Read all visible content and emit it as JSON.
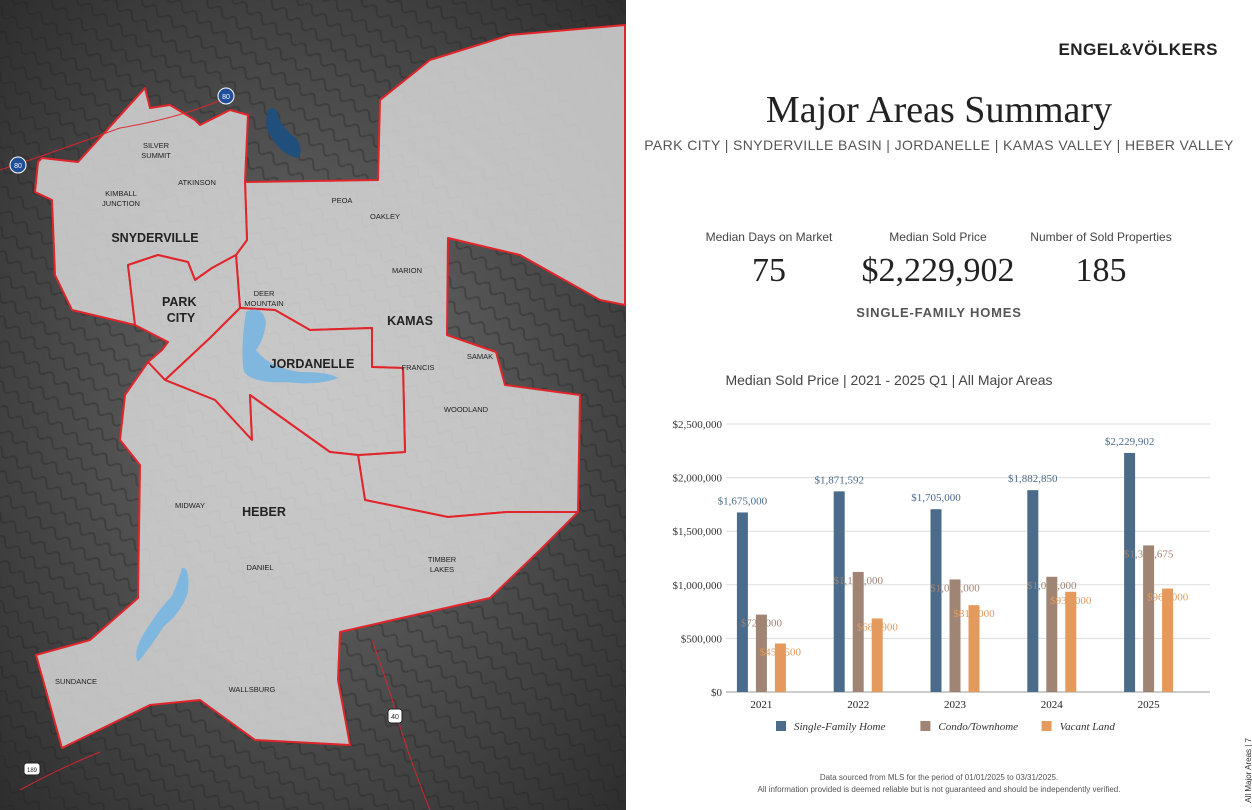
{
  "brand": {
    "logo": "ENGEL&VÖLKERS"
  },
  "header": {
    "title": "Major Areas Summary",
    "subtitle": "PARK CITY  |  SNYDERVILLE BASIN  |  JORDANELLE  |  KAMAS VALLEY  |  HEBER VALLEY"
  },
  "stats": [
    {
      "label": "Median Days on Market",
      "value": "75"
    },
    {
      "label": "Median Sold Price",
      "value": "$2,229,902"
    },
    {
      "label": "Number of Sold Properties",
      "value": "185"
    }
  ],
  "stats_caption": "SINGLE-FAMILY HOMES",
  "map": {
    "highways": [
      "80",
      "80",
      "40",
      "189"
    ],
    "areas": [
      "SNYDERVILLE",
      "PARK CITY",
      "JORDANELLE",
      "KAMAS",
      "HEBER"
    ],
    "places": [
      "SILVER SUMMIT",
      "ATKINSON",
      "KIMBALL JUNCTION",
      "PEOA",
      "OAKLEY",
      "MARION",
      "DEER MOUNTAIN",
      "SAMAK",
      "FRANCIS",
      "WOODLAND",
      "MIDWAY",
      "DANIEL",
      "TIMBER LAKES",
      "SUNDANCE",
      "WALLSBURG"
    ]
  },
  "chart_title": "Median Sold Price  |  2021 - 2025 Q1  |  All Major Areas",
  "chart_data": {
    "type": "bar",
    "title": "Median Sold Price  |  2021 - 2025 Q1  |  All Major Areas",
    "categories": [
      "2021",
      "2022",
      "2023",
      "2024",
      "2025"
    ],
    "ylim": [
      0,
      2500000
    ],
    "yticks": [
      "$0",
      "$500,000",
      "$1,000,000",
      "$1,500,000",
      "$2,000,000",
      "$2,500,000"
    ],
    "grid": true,
    "legend": "bottom",
    "series": [
      {
        "name": "Single-Family Home",
        "color": "#4a6b8a",
        "values": [
          1675000,
          1871592,
          1705000,
          1882850,
          2229902
        ],
        "labels": [
          "$1,675,000",
          "$1,871,592",
          "$1,705,000",
          "$1,882,850",
          "$2,229,902"
        ]
      },
      {
        "name": "Condo/Townhome",
        "color": "#a08574",
        "values": [
          722000,
          1120000,
          1050000,
          1075000,
          1367675
        ],
        "labels": [
          "$722,000",
          "$1,120,000",
          "$1,050,000",
          "$1,075,000",
          "$1,367,675"
        ]
      },
      {
        "name": "Vacant Land",
        "color": "#e39a5c",
        "values": [
          452500,
          685900,
          810000,
          935000,
          965000
        ],
        "labels": [
          "$452,500",
          "$685,900",
          "$810,000",
          "$935,000",
          "$965,000"
        ]
      }
    ]
  },
  "side_label": "All Major Areas | 7",
  "footer": {
    "line1": "Data sourced from MLS for the period of 01/01/2025 to 03/31/2025.",
    "line2": "All information provided is deemed reliable but is not guaranteed and should be independently verified."
  }
}
